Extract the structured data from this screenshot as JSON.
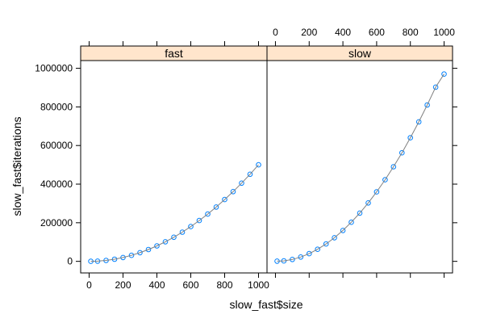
{
  "chart_data": {
    "type": "scatter",
    "xlabel": "slow_fast$size",
    "ylabel": "slow_fast$iterations",
    "xlim": [
      -50,
      1050
    ],
    "ylim": [
      -60000,
      1040000
    ],
    "x_ticks": [
      0,
      200,
      400,
      600,
      800,
      1000
    ],
    "y_ticks": [
      0,
      200000,
      400000,
      600000,
      800000,
      1000000
    ],
    "x_tick_labels": [
      "0",
      "200",
      "400",
      "600",
      "800",
      "1000"
    ],
    "y_tick_labels": [
      "0",
      "200000",
      "400000",
      "600000",
      "800000",
      "1000000"
    ],
    "grid": false,
    "point_color": "#0080ff",
    "fit_line_color": "#808080",
    "strip_color": "#ffe5cc",
    "panels": [
      {
        "name": "fast",
        "points_x": [
          10,
          50,
          100,
          150,
          200,
          250,
          300,
          350,
          400,
          450,
          500,
          550,
          600,
          650,
          700,
          750,
          800,
          850,
          900,
          950,
          1000
        ],
        "points_y": [
          50,
          1250,
          5000,
          11250,
          20000,
          31250,
          45000,
          61250,
          80000,
          101250,
          125000,
          151250,
          180000,
          211250,
          245000,
          281250,
          320000,
          361250,
          405000,
          451250,
          500000
        ]
      },
      {
        "name": "slow",
        "points_x": [
          10,
          50,
          100,
          150,
          200,
          250,
          300,
          350,
          400,
          450,
          500,
          550,
          600,
          650,
          700,
          750,
          800,
          850,
          900,
          950,
          1000
        ],
        "points_y": [
          1000,
          2500,
          10000,
          22500,
          40000,
          62500,
          90000,
          122500,
          160000,
          202500,
          250000,
          302500,
          360000,
          422500,
          490000,
          562500,
          640000,
          722500,
          810000,
          902500,
          970000
        ]
      }
    ]
  }
}
